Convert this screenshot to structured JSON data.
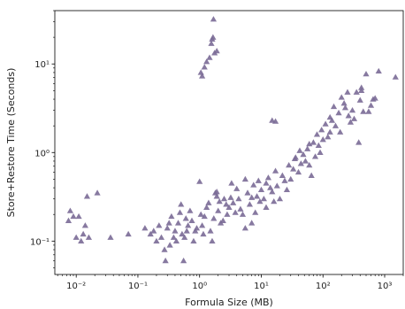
{
  "chart_data": {
    "type": "scatter",
    "title": "",
    "xlabel": "Formula Size (MB)",
    "ylabel": "Store+Restore Time (Seconds)",
    "xscale": "log",
    "yscale": "log",
    "xlim": [
      0.0045,
      2000
    ],
    "ylim": [
      0.042,
      40
    ],
    "grid": false,
    "legend": "none",
    "marker": "triangle",
    "color": "#7a6a96",
    "x_ticks": [
      {
        "value": 0.01,
        "label": "10⁻²"
      },
      {
        "value": 0.1,
        "label": "10⁻¹"
      },
      {
        "value": 1,
        "label": "10⁰"
      },
      {
        "value": 10,
        "label": "10¹"
      },
      {
        "value": 100,
        "label": "10²"
      },
      {
        "value": 1000,
        "label": "10³"
      }
    ],
    "y_ticks": [
      {
        "value": 0.1,
        "label": "10⁻¹"
      },
      {
        "value": 1,
        "label": "10⁰"
      },
      {
        "value": 10,
        "label": "10¹"
      }
    ],
    "points": [
      [
        0.0075,
        0.17
      ],
      [
        0.008,
        0.22
      ],
      [
        0.009,
        0.19
      ],
      [
        0.01,
        0.11
      ],
      [
        0.011,
        0.19
      ],
      [
        0.012,
        0.1
      ],
      [
        0.013,
        0.12
      ],
      [
        0.014,
        0.15
      ],
      [
        0.015,
        0.32
      ],
      [
        0.016,
        0.11
      ],
      [
        0.022,
        0.35
      ],
      [
        0.036,
        0.11
      ],
      [
        0.07,
        0.12
      ],
      [
        0.13,
        0.14
      ],
      [
        0.16,
        0.12
      ],
      [
        0.18,
        0.13
      ],
      [
        0.2,
        0.1
      ],
      [
        0.22,
        0.15
      ],
      [
        0.24,
        0.11
      ],
      [
        0.27,
        0.08
      ],
      [
        0.28,
        0.06
      ],
      [
        0.3,
        0.14
      ],
      [
        0.32,
        0.16
      ],
      [
        0.33,
        0.09
      ],
      [
        0.35,
        0.19
      ],
      [
        0.38,
        0.11
      ],
      [
        0.4,
        0.13
      ],
      [
        0.42,
        0.1
      ],
      [
        0.45,
        0.16
      ],
      [
        0.48,
        0.21
      ],
      [
        0.5,
        0.26
      ],
      [
        0.52,
        0.12
      ],
      [
        0.55,
        0.06
      ],
      [
        0.57,
        0.11
      ],
      [
        0.6,
        0.18
      ],
      [
        0.62,
        0.13
      ],
      [
        0.65,
        0.15
      ],
      [
        0.7,
        0.22
      ],
      [
        0.75,
        0.17
      ],
      [
        0.8,
        0.1
      ],
      [
        0.85,
        0.13
      ],
      [
        0.9,
        0.14
      ],
      [
        1.0,
        0.47
      ],
      [
        1.05,
        0.2
      ],
      [
        1.1,
        0.15
      ],
      [
        1.15,
        0.12
      ],
      [
        1.2,
        0.19
      ],
      [
        1.3,
        0.24
      ],
      [
        1.4,
        0.27
      ],
      [
        1.5,
        0.13
      ],
      [
        1.6,
        0.1
      ],
      [
        1.7,
        0.18
      ],
      [
        1.8,
        0.35
      ],
      [
        1.9,
        0.32
      ],
      [
        2.0,
        0.22
      ],
      [
        2.1,
        0.28
      ],
      [
        2.2,
        0.16
      ],
      [
        2.4,
        0.17
      ],
      [
        2.5,
        0.3
      ],
      [
        2.7,
        0.26
      ],
      [
        2.8,
        0.2
      ],
      [
        3.0,
        0.24
      ],
      [
        3.2,
        0.31
      ],
      [
        3.5,
        0.27
      ],
      [
        3.8,
        0.21
      ],
      [
        4.0,
        0.39
      ],
      [
        4.3,
        0.3
      ],
      [
        4.6,
        0.23
      ],
      [
        5.0,
        0.2
      ],
      [
        5.5,
        0.14
      ],
      [
        6.0,
        0.35
      ],
      [
        6.5,
        0.26
      ],
      [
        7.0,
        0.16
      ],
      [
        7.5,
        0.43
      ],
      [
        8.0,
        0.21
      ],
      [
        8.5,
        0.32
      ],
      [
        9.0,
        0.48
      ],
      [
        9.5,
        0.28
      ],
      [
        10,
        0.38
      ],
      [
        11,
        0.3
      ],
      [
        12,
        0.45
      ],
      [
        13,
        0.52
      ],
      [
        14,
        0.4
      ],
      [
        15,
        0.36
      ],
      [
        16,
        0.28
      ],
      [
        17,
        0.62
      ],
      [
        18,
        0.42
      ],
      [
        20,
        0.3
      ],
      [
        22,
        0.55
      ],
      [
        24,
        0.48
      ],
      [
        26,
        0.38
      ],
      [
        28,
        0.72
      ],
      [
        30,
        0.5
      ],
      [
        33,
        0.65
      ],
      [
        36,
        0.88
      ],
      [
        40,
        0.6
      ],
      [
        44,
        0.75
      ],
      [
        48,
        0.95
      ],
      [
        52,
        0.8
      ],
      [
        56,
        1.1
      ],
      [
        60,
        0.72
      ],
      [
        65,
        0.55
      ],
      [
        70,
        1.3
      ],
      [
        75,
        0.9
      ],
      [
        80,
        1.6
      ],
      [
        85,
        1.2
      ],
      [
        90,
        1.0
      ],
      [
        95,
        1.8
      ],
      [
        100,
        1.4
      ],
      [
        110,
        2.1
      ],
      [
        120,
        1.5
      ],
      [
        130,
        1.7
      ],
      [
        140,
        2.3
      ],
      [
        150,
        3.3
      ],
      [
        160,
        2.0
      ],
      [
        180,
        2.8
      ],
      [
        190,
        1.7
      ],
      [
        200,
        4.2
      ],
      [
        220,
        3.6
      ],
      [
        250,
        4.8
      ],
      [
        260,
        2.6
      ],
      [
        280,
        2.2
      ],
      [
        300,
        3.0
      ],
      [
        320,
        2.4
      ],
      [
        350,
        4.8
      ],
      [
        380,
        1.3
      ],
      [
        400,
        3.9
      ],
      [
        420,
        5.4
      ],
      [
        450,
        2.9
      ],
      [
        500,
        7.7
      ],
      [
        550,
        2.9
      ],
      [
        600,
        3.4
      ],
      [
        650,
        4.0
      ],
      [
        700,
        4.1
      ],
      [
        1500,
        7.1
      ],
      [
        1.05,
        8.0
      ],
      [
        1.1,
        7.3
      ],
      [
        1.2,
        9.2
      ],
      [
        1.3,
        10.6
      ],
      [
        1.45,
        11.8
      ],
      [
        1.55,
        17.0
      ],
      [
        1.6,
        19.0
      ],
      [
        1.65,
        20.0
      ],
      [
        1.75,
        13.3
      ],
      [
        1.9,
        14.0
      ],
      [
        1.68,
        32.0
      ],
      [
        1.9,
        0.36
      ],
      [
        3.3,
        0.45
      ],
      [
        5.5,
        0.5
      ],
      [
        7.0,
        0.31
      ],
      [
        12,
        0.24
      ],
      [
        15,
        2.3
      ],
      [
        17,
        2.25
      ],
      [
        35,
        0.85
      ],
      [
        42,
        1.05
      ],
      [
        60,
        1.25
      ],
      [
        130,
        2.5
      ],
      [
        230,
        3.2
      ],
      [
        420,
        5.0
      ],
      [
        800,
        8.3
      ]
    ]
  }
}
